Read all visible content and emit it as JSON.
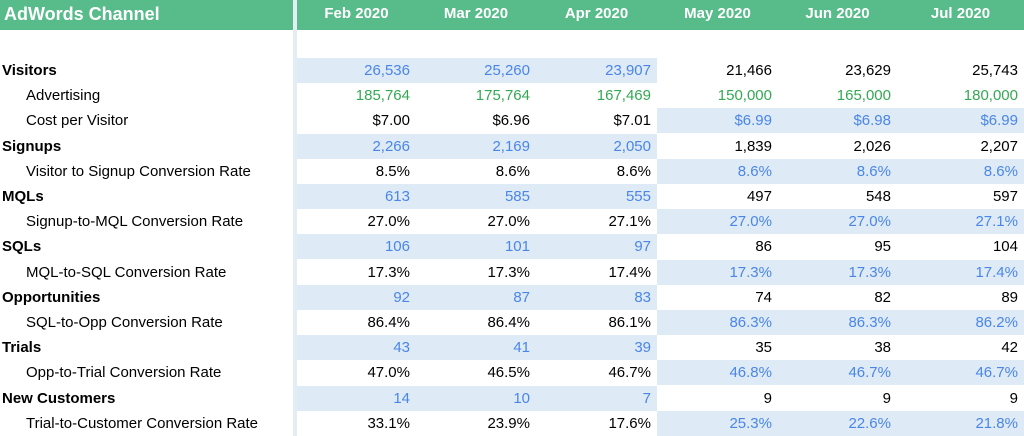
{
  "header": {
    "title": "AdWords Channel",
    "months": [
      "Feb 2020",
      "Mar 2020",
      "Apr 2020",
      "May 2020",
      "Jun 2020",
      "Jul 2020"
    ]
  },
  "colors": {
    "header_bg": "#57bb8a",
    "header_text": "#ffffff",
    "highlight_bg": "#deeaf6",
    "blue_text": "#4a86e8",
    "green_text": "#34a853",
    "default_text": "#000000"
  },
  "rows": [
    {
      "label": "Visitors",
      "kind": "main",
      "style": "blue-actuals",
      "values": [
        "26,536",
        "25,260",
        "23,907",
        "21,466",
        "23,629",
        "25,743"
      ]
    },
    {
      "label": "Advertising",
      "kind": "sub",
      "style": "green",
      "values": [
        "185,764",
        "175,764",
        "167,469",
        "150,000",
        "165,000",
        "180,000"
      ]
    },
    {
      "label": "Cost per Visitor",
      "kind": "sub",
      "style": "blue-forecast",
      "values": [
        "$7.00",
        "$6.96",
        "$7.01",
        "$6.99",
        "$6.98",
        "$6.99"
      ]
    },
    {
      "label": "Signups",
      "kind": "main",
      "style": "blue-actuals",
      "values": [
        "2,266",
        "2,169",
        "2,050",
        "1,839",
        "2,026",
        "2,207"
      ]
    },
    {
      "label": "Visitor to Signup Conversion Rate",
      "kind": "sub",
      "style": "blue-forecast",
      "values": [
        "8.5%",
        "8.6%",
        "8.6%",
        "8.6%",
        "8.6%",
        "8.6%"
      ]
    },
    {
      "label": "MQLs",
      "kind": "main",
      "style": "blue-actuals",
      "values": [
        "613",
        "585",
        "555",
        "497",
        "548",
        "597"
      ]
    },
    {
      "label": "Signup-to-MQL Conversion Rate",
      "kind": "sub",
      "style": "blue-forecast",
      "values": [
        "27.0%",
        "27.0%",
        "27.1%",
        "27.0%",
        "27.0%",
        "27.1%"
      ]
    },
    {
      "label": "SQLs",
      "kind": "main",
      "style": "blue-actuals",
      "values": [
        "106",
        "101",
        "97",
        "86",
        "95",
        "104"
      ]
    },
    {
      "label": "MQL-to-SQL Conversion Rate",
      "kind": "sub",
      "style": "blue-forecast",
      "values": [
        "17.3%",
        "17.3%",
        "17.4%",
        "17.3%",
        "17.3%",
        "17.4%"
      ]
    },
    {
      "label": "Opportunities",
      "kind": "main",
      "style": "blue-actuals",
      "values": [
        "92",
        "87",
        "83",
        "74",
        "82",
        "89"
      ]
    },
    {
      "label": "SQL-to-Opp Conversion Rate",
      "kind": "sub",
      "style": "blue-forecast",
      "values": [
        "86.4%",
        "86.4%",
        "86.1%",
        "86.3%",
        "86.3%",
        "86.2%"
      ]
    },
    {
      "label": "Trials",
      "kind": "main",
      "style": "blue-actuals",
      "values": [
        "43",
        "41",
        "39",
        "35",
        "38",
        "42"
      ]
    },
    {
      "label": "Opp-to-Trial Conversion Rate",
      "kind": "sub",
      "style": "blue-forecast",
      "values": [
        "47.0%",
        "46.5%",
        "46.7%",
        "46.8%",
        "46.7%",
        "46.7%"
      ]
    },
    {
      "label": "New Customers",
      "kind": "main",
      "style": "blue-actuals",
      "values": [
        "14",
        "10",
        "7",
        "9",
        "9",
        "9"
      ]
    },
    {
      "label": "Trial-to-Customer Conversion Rate",
      "kind": "sub",
      "style": "blue-forecast",
      "values": [
        "33.1%",
        "23.9%",
        "17.6%",
        "25.3%",
        "22.6%",
        "21.8%"
      ]
    }
  ]
}
